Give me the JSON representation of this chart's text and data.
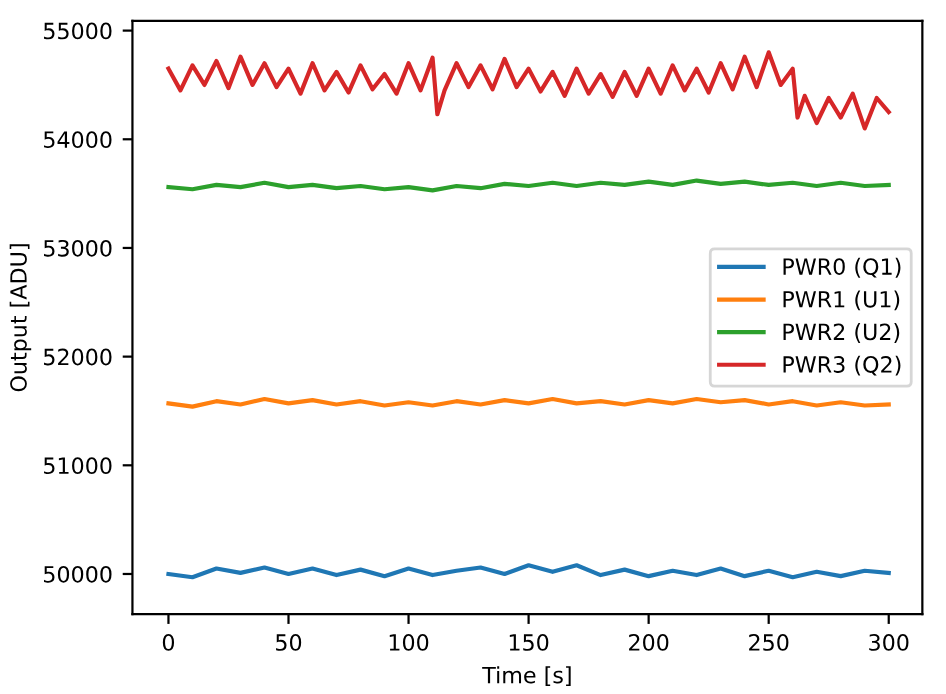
{
  "chart_data": {
    "type": "line",
    "xlabel": "Time [s]",
    "ylabel": "Output [ADU]",
    "xlim": [
      -15,
      314
    ],
    "xticks": [
      0,
      50,
      100,
      150,
      200,
      250,
      300
    ],
    "ylim": [
      49630,
      55090
    ],
    "yticks": [
      50000,
      51000,
      52000,
      53000,
      54000,
      55000
    ],
    "grid": false,
    "legend": "right",
    "line_style": "solid",
    "marker": "none",
    "series": [
      {
        "name": "PWR0 (Q1)",
        "color": "#1f77b4",
        "x": [
          0,
          10,
          20,
          30,
          40,
          50,
          60,
          70,
          80,
          90,
          100,
          110,
          120,
          130,
          140,
          150,
          160,
          170,
          180,
          190,
          200,
          210,
          220,
          230,
          240,
          250,
          260,
          270,
          280,
          290,
          300
        ],
        "values": [
          50000,
          49970,
          50050,
          50010,
          50060,
          50000,
          50050,
          49990,
          50040,
          49980,
          50050,
          49990,
          50030,
          50060,
          50000,
          50080,
          50020,
          50080,
          49990,
          50040,
          49980,
          50030,
          49990,
          50050,
          49980,
          50030,
          49970,
          50020,
          49980,
          50030,
          50010
        ]
      },
      {
        "name": "PWR1 (U1)",
        "color": "#ff7f0e",
        "x": [
          0,
          10,
          20,
          30,
          40,
          50,
          60,
          70,
          80,
          90,
          100,
          110,
          120,
          130,
          140,
          150,
          160,
          170,
          180,
          190,
          200,
          210,
          220,
          230,
          240,
          250,
          260,
          270,
          280,
          290,
          300
        ],
        "values": [
          51570,
          51540,
          51590,
          51560,
          51610,
          51570,
          51600,
          51560,
          51590,
          51550,
          51580,
          51550,
          51590,
          51560,
          51600,
          51570,
          51610,
          51570,
          51590,
          51560,
          51600,
          51570,
          51610,
          51580,
          51600,
          51560,
          51590,
          51550,
          51580,
          51550,
          51560
        ]
      },
      {
        "name": "PWR2 (U2)",
        "color": "#2ca02c",
        "x": [
          0,
          10,
          20,
          30,
          40,
          50,
          60,
          70,
          80,
          90,
          100,
          110,
          120,
          130,
          140,
          150,
          160,
          170,
          180,
          190,
          200,
          210,
          220,
          230,
          240,
          250,
          260,
          270,
          280,
          290,
          300
        ],
        "values": [
          53560,
          53540,
          53580,
          53560,
          53600,
          53560,
          53580,
          53550,
          53570,
          53540,
          53560,
          53530,
          53570,
          53550,
          53590,
          53570,
          53600,
          53570,
          53600,
          53580,
          53610,
          53580,
          53620,
          53590,
          53610,
          53580,
          53600,
          53570,
          53600,
          53570,
          53580
        ]
      },
      {
        "name": "PWR3 (Q2)",
        "color": "#d62728",
        "x": [
          0,
          5,
          10,
          15,
          20,
          25,
          30,
          35,
          40,
          45,
          50,
          55,
          60,
          65,
          70,
          75,
          80,
          85,
          90,
          95,
          100,
          105,
          110,
          112,
          115,
          120,
          125,
          130,
          135,
          140,
          145,
          150,
          155,
          160,
          165,
          170,
          175,
          180,
          185,
          190,
          195,
          200,
          205,
          210,
          215,
          220,
          225,
          230,
          235,
          240,
          245,
          250,
          255,
          260,
          262,
          265,
          270,
          275,
          280,
          285,
          290,
          295,
          300
        ],
        "values": [
          54650,
          54450,
          54680,
          54500,
          54720,
          54470,
          54760,
          54500,
          54700,
          54480,
          54650,
          54420,
          54700,
          54450,
          54620,
          54430,
          54680,
          54460,
          54600,
          54420,
          54700,
          54450,
          54750,
          54230,
          54450,
          54700,
          54480,
          54680,
          54460,
          54740,
          54480,
          54650,
          54440,
          54620,
          54400,
          54650,
          54420,
          54600,
          54390,
          54620,
          54400,
          54650,
          54420,
          54680,
          54450,
          54650,
          54430,
          54700,
          54460,
          54760,
          54480,
          54800,
          54500,
          54650,
          54200,
          54400,
          54150,
          54380,
          54200,
          54420,
          54100,
          54380,
          54250
        ]
      }
    ]
  }
}
